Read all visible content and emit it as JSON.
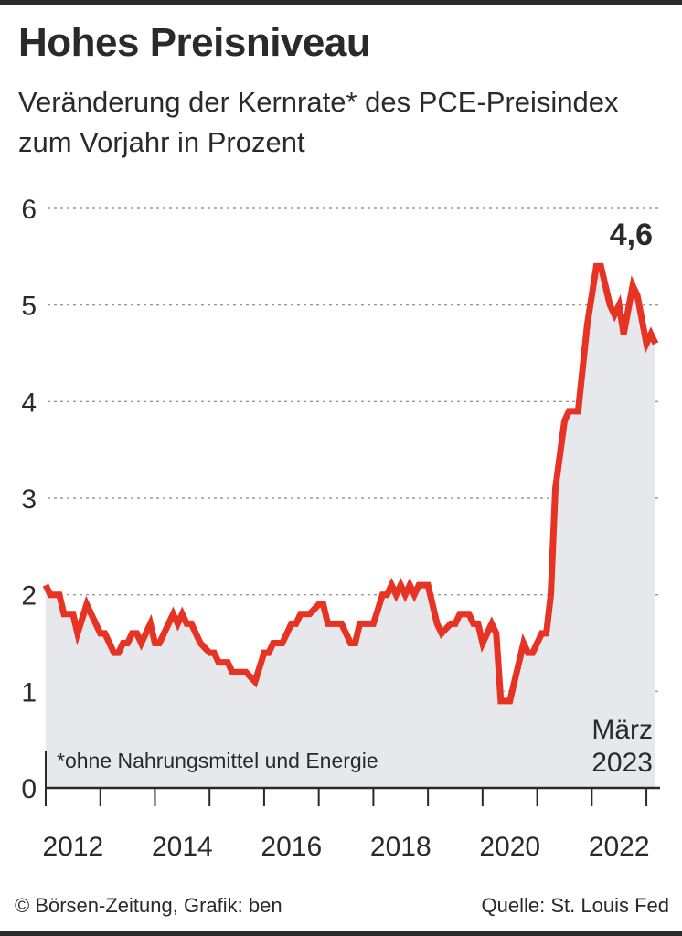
{
  "title": "Hohes Preisniveau",
  "subtitle": "Veränderung der Kernrate* des PCE-Preisindex zum Vorjahr in Prozent",
  "footnote": "*ohne Nahrungsmittel und Energie",
  "source_left": "© Börsen-Zeitung, Grafik: ben",
  "source_right": "Quelle: St. Louis Fed",
  "end_label": "März",
  "end_year": "2023",
  "last_value_label": "4,6",
  "colors": {
    "line": "#e63323",
    "area": "#e6e8ec",
    "grid": "#9a9a9a",
    "text": "#2a2a2a"
  },
  "chart_data": {
    "type": "area",
    "title": "Hohes Preisniveau",
    "ylabel": "",
    "xlabel": "",
    "ylim": [
      0,
      6
    ],
    "yticks": [
      0,
      1,
      2,
      3,
      4,
      5,
      6
    ],
    "xticks": [
      "2012",
      "2014",
      "2016",
      "2018",
      "2020",
      "2022"
    ],
    "grid": true,
    "series": [
      {
        "points": [
          [
            "2012-01",
            2.1
          ],
          [
            "2012-02",
            2.0
          ],
          [
            "2012-04",
            2.0
          ],
          [
            "2012-05",
            1.8
          ],
          [
            "2012-07",
            1.8
          ],
          [
            "2012-08",
            1.6
          ],
          [
            "2012-10",
            1.9
          ],
          [
            "2013-01",
            1.6
          ],
          [
            "2013-02",
            1.6
          ],
          [
            "2013-04",
            1.4
          ],
          [
            "2013-05",
            1.4
          ],
          [
            "2013-06",
            1.5
          ],
          [
            "2013-07",
            1.5
          ],
          [
            "2013-08",
            1.6
          ],
          [
            "2013-09",
            1.6
          ],
          [
            "2013-10",
            1.5
          ],
          [
            "2013-12",
            1.7
          ],
          [
            "2014-01",
            1.5
          ],
          [
            "2014-02",
            1.5
          ],
          [
            "2014-05",
            1.8
          ],
          [
            "2014-06",
            1.7
          ],
          [
            "2014-07",
            1.8
          ],
          [
            "2014-08",
            1.7
          ],
          [
            "2014-09",
            1.7
          ],
          [
            "2014-11",
            1.5
          ],
          [
            "2015-01",
            1.4
          ],
          [
            "2015-02",
            1.4
          ],
          [
            "2015-03",
            1.3
          ],
          [
            "2015-05",
            1.3
          ],
          [
            "2015-06",
            1.2
          ],
          [
            "2015-09",
            1.2
          ],
          [
            "2015-11",
            1.1
          ],
          [
            "2016-01",
            1.4
          ],
          [
            "2016-02",
            1.4
          ],
          [
            "2016-03",
            1.5
          ],
          [
            "2016-05",
            1.5
          ],
          [
            "2016-07",
            1.7
          ],
          [
            "2016-08",
            1.7
          ],
          [
            "2016-09",
            1.8
          ],
          [
            "2016-11",
            1.8
          ],
          [
            "2017-01",
            1.9
          ],
          [
            "2017-02",
            1.9
          ],
          [
            "2017-03",
            1.7
          ],
          [
            "2017-06",
            1.7
          ],
          [
            "2017-08",
            1.5
          ],
          [
            "2017-09",
            1.5
          ],
          [
            "2017-10",
            1.7
          ],
          [
            "2017-12",
            1.7
          ],
          [
            "2018-01",
            1.7
          ],
          [
            "2018-03",
            2.0
          ],
          [
            "2018-04",
            2.0
          ],
          [
            "2018-05",
            2.1
          ],
          [
            "2018-06",
            2.0
          ],
          [
            "2018-07",
            2.1
          ],
          [
            "2018-08",
            2.0
          ],
          [
            "2018-09",
            2.1
          ],
          [
            "2018-10",
            2.0
          ],
          [
            "2018-11",
            2.1
          ],
          [
            "2019-01",
            2.1
          ],
          [
            "2019-03",
            1.7
          ],
          [
            "2019-04",
            1.6
          ],
          [
            "2019-06",
            1.7
          ],
          [
            "2019-07",
            1.7
          ],
          [
            "2019-08",
            1.8
          ],
          [
            "2019-10",
            1.8
          ],
          [
            "2019-11",
            1.7
          ],
          [
            "2019-12",
            1.7
          ],
          [
            "2020-01",
            1.5
          ],
          [
            "2020-03",
            1.7
          ],
          [
            "2020-04",
            1.6
          ],
          [
            "2020-05",
            0.9
          ],
          [
            "2020-07",
            0.9
          ],
          [
            "2020-10",
            1.5
          ],
          [
            "2020-11",
            1.4
          ],
          [
            "2020-12",
            1.4
          ],
          [
            "2021-02",
            1.6
          ],
          [
            "2021-03",
            1.6
          ],
          [
            "2021-04",
            2.0
          ],
          [
            "2021-05",
            3.1
          ],
          [
            "2021-07",
            3.8
          ],
          [
            "2021-08",
            3.9
          ],
          [
            "2021-09",
            3.9
          ],
          [
            "2021-10",
            3.9
          ],
          [
            "2021-12",
            4.8
          ],
          [
            "2022-02",
            5.4
          ],
          [
            "2022-03",
            5.4
          ],
          [
            "2022-05",
            5.0
          ],
          [
            "2022-06",
            4.9
          ],
          [
            "2022-07",
            5.0
          ],
          [
            "2022-08",
            4.7
          ],
          [
            "2022-10",
            5.2
          ],
          [
            "2022-11",
            5.1
          ],
          [
            "2023-01",
            4.6
          ],
          [
            "2023-02",
            4.7
          ],
          [
            "2023-03",
            4.6
          ]
        ]
      }
    ],
    "annotations": [
      "4,6",
      "März 2023",
      "*ohne Nahrungsmittel und Energie"
    ]
  }
}
